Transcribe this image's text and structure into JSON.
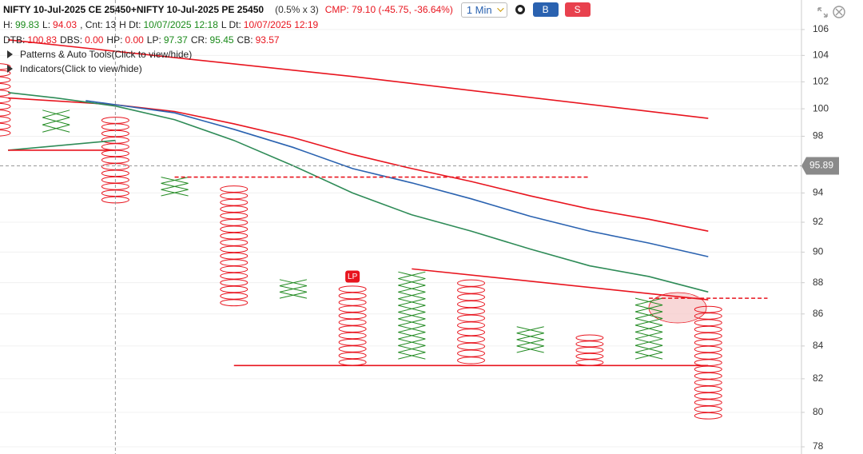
{
  "header": {
    "title": "NIFTY 10-Jul-2025 CE 25450+NIFTY 10-Jul-2025 PE 25450",
    "box": "(0.5% x 3)",
    "cmp": "CMP: 79.10 (-45.75, -36.64%)",
    "interval": "1 Min",
    "buy": "B",
    "sell": "S"
  },
  "stats": [
    [
      {
        "label": "H:",
        "value": "99.83",
        "color": "#1a8a1a"
      },
      {
        "label": "L:",
        "value": "94.03",
        "color": "#e8141e"
      },
      {
        "label": ", Cnt:",
        "value": "13",
        "color": "#222"
      },
      {
        "label": "H Dt:",
        "value": "10/07/2025 12:18",
        "color": "#1a8a1a"
      },
      {
        "label": "L Dt:",
        "value": "10/07/2025 12:19",
        "color": "#e8141e"
      }
    ],
    [
      {
        "label": "DTB:",
        "value": "100.83",
        "color": "#e8141e"
      },
      {
        "label": "DBS:",
        "value": "0.00",
        "color": "#e8141e"
      },
      {
        "label": "HP:",
        "value": "0.00",
        "color": "#e8141e"
      },
      {
        "label": "LP:",
        "value": "97.37",
        "color": "#1a8a1a"
      },
      {
        "label": "CR:",
        "value": "95.45",
        "color": "#1a8a1a"
      },
      {
        "label": "CB:",
        "value": "93.57",
        "color": "#e8141e"
      }
    ]
  ],
  "toggles": [
    "Patterns & Auto Tools(Click to view/hide)",
    "Indicators(Click to view/hide)"
  ],
  "chart_data": {
    "type": "pointfigure",
    "log_scale": true,
    "grid": true,
    "ylim": [
      78,
      107.5
    ],
    "yticks": [
      78,
      80,
      82,
      84,
      86,
      88,
      90,
      92,
      94,
      98,
      100,
      102,
      104,
      106
    ],
    "xlim": [
      0,
      13.6
    ],
    "x_color": "#228b22",
    "o_color": "#e8141e",
    "columns": [
      {
        "kind": "O",
        "high": 103.4,
        "low": 98.0
      },
      {
        "kind": "X",
        "high": 99.9,
        "low": 98.3
      },
      {
        "kind": "O",
        "high": 99.4,
        "low": 93.3
      },
      {
        "kind": "X",
        "high": 95.1,
        "low": 93.8
      },
      {
        "kind": "O",
        "high": 94.5,
        "low": 86.5
      },
      {
        "kind": "X",
        "high": 88.2,
        "low": 87.0
      },
      {
        "kind": "O",
        "high": 87.8,
        "low": 82.8
      },
      {
        "kind": "X",
        "high": 88.7,
        "low": 83.2
      },
      {
        "kind": "O",
        "high": 88.2,
        "low": 82.9
      },
      {
        "kind": "X",
        "high": 85.2,
        "low": 83.6
      },
      {
        "kind": "O",
        "high": 84.7,
        "low": 82.8
      },
      {
        "kind": "X",
        "high": 87.0,
        "low": 83.2
      },
      {
        "kind": "O",
        "high": 86.5,
        "low": 79.6
      }
    ],
    "lines": [
      {
        "color": "#e8141e",
        "x": [
          0.19,
          6,
          12
        ],
        "values": [
          105.2,
          102.4,
          99.3
        ]
      },
      {
        "color": "#e8141e",
        "x": [
          0.19,
          2,
          3,
          4,
          5,
          6,
          7,
          8,
          9,
          10,
          11,
          12
        ],
        "values": [
          100.8,
          100.3,
          99.8,
          98.9,
          97.9,
          96.7,
          95.7,
          94.8,
          93.8,
          92.9,
          92.2,
          91.4
        ]
      },
      {
        "color": "#2a62b0",
        "x": [
          1.5,
          2,
          3,
          4,
          5,
          6,
          7,
          8,
          9,
          10,
          11,
          12
        ],
        "values": [
          100.6,
          100.3,
          99.7,
          98.5,
          97.2,
          95.7,
          94.7,
          93.6,
          92.4,
          91.4,
          90.6,
          89.7
        ]
      },
      {
        "color": "#2e8b57",
        "x": [
          0.19,
          1,
          2,
          3,
          4,
          5,
          6,
          7,
          8,
          9,
          10,
          11,
          12
        ],
        "values": [
          101.2,
          100.8,
          100.2,
          99.2,
          97.7,
          95.9,
          94.0,
          92.5,
          91.4,
          90.2,
          89.1,
          88.4,
          87.4
        ]
      },
      {
        "color": "#2e8b57",
        "x": [
          0.19,
          2
        ],
        "values": [
          97.0,
          97.7
        ]
      },
      {
        "color": "#e8141e",
        "x": [
          0.19,
          2
        ],
        "values": [
          97.0,
          97.0
        ]
      },
      {
        "color": "#e8141e",
        "x": [
          4,
          12
        ],
        "values": [
          82.8,
          82.8
        ]
      },
      {
        "color": "#e8141e",
        "x": [
          7,
          12
        ],
        "values": [
          88.9,
          86.9
        ]
      },
      {
        "color": "#e8141e",
        "dashed": true,
        "x": [
          3,
          10
        ],
        "values": [
          95.1,
          95.1
        ]
      },
      {
        "color": "#e8141e",
        "dashed": true,
        "x": [
          11,
          13
        ],
        "values": [
          87.0,
          87.0
        ]
      }
    ],
    "crosshair": {
      "value": 95.89,
      "x": 2
    },
    "marker": {
      "label": "LP",
      "column": 6
    }
  }
}
